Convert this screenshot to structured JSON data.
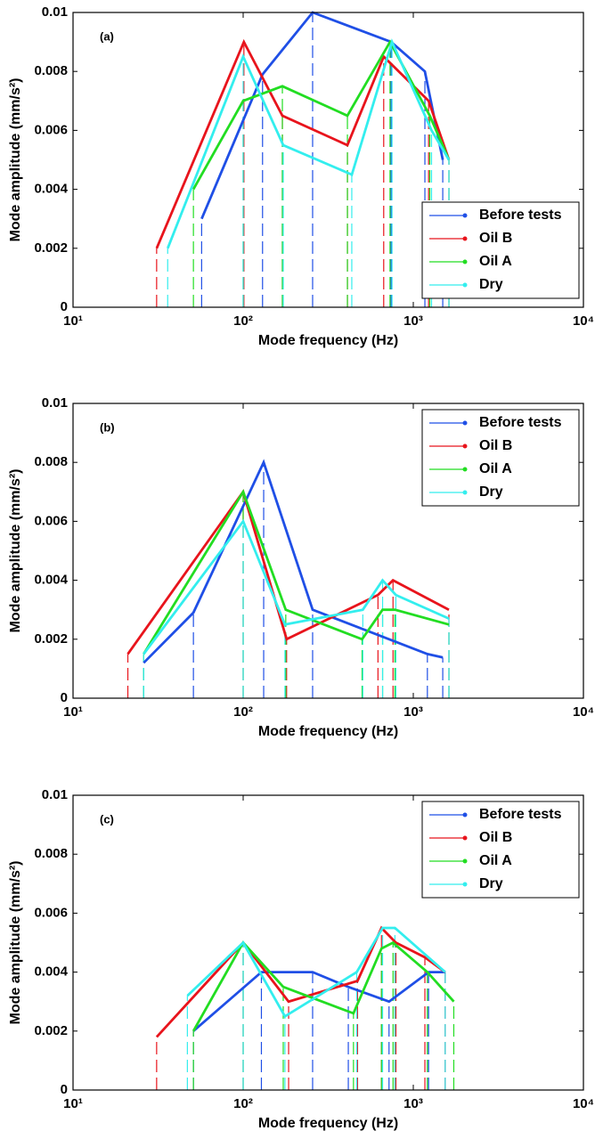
{
  "chart_data": [
    {
      "type": "line",
      "label": "(a)",
      "xlabel": "Mode frequency (Hz)",
      "ylabel": "Mode amplitude (mm/s²)",
      "xscale": "log",
      "legend": "lower right",
      "xlim": [
        10,
        10000
      ],
      "xticks": [
        {
          "value": 10,
          "label": "10¹"
        },
        {
          "value": 100,
          "label": "10²"
        },
        {
          "value": 1000,
          "label": "10³"
        },
        {
          "value": 10000,
          "label": "10⁴"
        }
      ],
      "ylim": [
        0,
        0.01
      ],
      "yticks": [
        0,
        0.002,
        0.004,
        0.006,
        0.008,
        0.01
      ],
      "series": [
        {
          "name": "Before tests",
          "color": "#1f4fe6",
          "x": [
            57,
            130,
            256,
            741,
            1170,
            1490
          ],
          "values": [
            0.003,
            0.0079,
            0.01,
            0.009,
            0.008,
            0.005
          ]
        },
        {
          "name": "Oil B",
          "color": "#e8141c",
          "x": [
            31,
            101,
            170,
            410,
            670,
            1230,
            1620
          ],
          "values": [
            0.002,
            0.009,
            0.0065,
            0.0055,
            0.0085,
            0.007,
            0.005
          ]
        },
        {
          "name": "Oil A",
          "color": "#22dd22",
          "x": [
            51,
            100,
            170,
            410,
            730,
            1250,
            1620
          ],
          "values": [
            0.004,
            0.007,
            0.0075,
            0.0065,
            0.009,
            0.0065,
            0.005
          ]
        },
        {
          "name": "Dry",
          "color": "#33eeee",
          "x": [
            36,
            100,
            172,
            435,
            750,
            1280,
            1620
          ],
          "values": [
            0.002,
            0.0085,
            0.0055,
            0.0045,
            0.009,
            0.006,
            0.005
          ]
        }
      ]
    },
    {
      "type": "line",
      "label": "(b)",
      "xlabel": "Mode frequency (Hz)",
      "ylabel": "Mode amplitude (mm/s²)",
      "xscale": "log",
      "legend": "upper right",
      "xlim": [
        10,
        10000
      ],
      "xticks": [
        {
          "value": 10,
          "label": "10¹"
        },
        {
          "value": 100,
          "label": "10²"
        },
        {
          "value": 1000,
          "label": "10³"
        },
        {
          "value": 10000,
          "label": "10⁴"
        }
      ],
      "ylim": [
        0,
        0.01
      ],
      "yticks": [
        0,
        0.002,
        0.004,
        0.006,
        0.008,
        0.01
      ],
      "series": [
        {
          "name": "Before tests",
          "color": "#1f4fe6",
          "x": [
            26,
            51,
            132,
            256,
            1210,
            1490
          ],
          "values": [
            0.0012,
            0.0029,
            0.008,
            0.003,
            0.0015,
            0.00138
          ]
        },
        {
          "name": "Oil B",
          "color": "#e8141c",
          "x": [
            21,
            100,
            180,
            620,
            760,
            1620
          ],
          "values": [
            0.0015,
            0.007,
            0.002,
            0.0035,
            0.004,
            0.003
          ]
        },
        {
          "name": "Oil A",
          "color": "#22dd22",
          "x": [
            26,
            100,
            178,
            500,
            660,
            780,
            1620
          ],
          "values": [
            0.0015,
            0.007,
            0.003,
            0.002,
            0.003,
            0.003,
            0.0025
          ]
        },
        {
          "name": "Dry",
          "color": "#33eeee",
          "x": [
            26,
            100,
            176,
            505,
            660,
            790,
            1620
          ],
          "values": [
            0.0015,
            0.006,
            0.0025,
            0.003,
            0.004,
            0.0035,
            0.0027
          ]
        }
      ]
    },
    {
      "type": "line",
      "label": "(c)",
      "xlabel": "Mode frequency (Hz)",
      "ylabel": "Mode amplitude (mm/s²)",
      "xscale": "log",
      "legend": "upper right",
      "xlim": [
        10,
        10000
      ],
      "xticks": [
        {
          "value": 10,
          "label": "10¹"
        },
        {
          "value": 100,
          "label": "10²"
        },
        {
          "value": 1000,
          "label": "10³"
        },
        {
          "value": 10000,
          "label": "10⁴"
        }
      ],
      "ylim": [
        0,
        0.01
      ],
      "yticks": [
        0,
        0.002,
        0.004,
        0.006,
        0.008,
        0.01
      ],
      "series": [
        {
          "name": "Before tests",
          "color": "#1f4fe6",
          "x": [
            51,
            128,
            256,
            415,
            720,
            1230,
            1540
          ],
          "values": [
            0.002,
            0.004,
            0.004,
            0.0035,
            0.003,
            0.004,
            0.004
          ]
        },
        {
          "name": "Oil B",
          "color": "#e8141c",
          "x": [
            31,
            100,
            185,
            470,
            650,
            790,
            1170,
            1540
          ],
          "values": [
            0.0018,
            0.005,
            0.003,
            0.0037,
            0.0055,
            0.005,
            0.0045,
            0.004
          ]
        },
        {
          "name": "Oil A",
          "color": "#22dd22",
          "x": [
            51,
            100,
            172,
            445,
            650,
            760,
            1210,
            1730
          ],
          "values": [
            0.002,
            0.005,
            0.0035,
            0.0026,
            0.0048,
            0.005,
            0.004,
            0.003
          ]
        },
        {
          "name": "Dry",
          "color": "#33eeee",
          "x": [
            47,
            100,
            176,
            465,
            660,
            780,
            1540
          ],
          "values": [
            0.0032,
            0.005,
            0.0025,
            0.004,
            0.0055,
            0.0055,
            0.004
          ]
        }
      ]
    }
  ]
}
